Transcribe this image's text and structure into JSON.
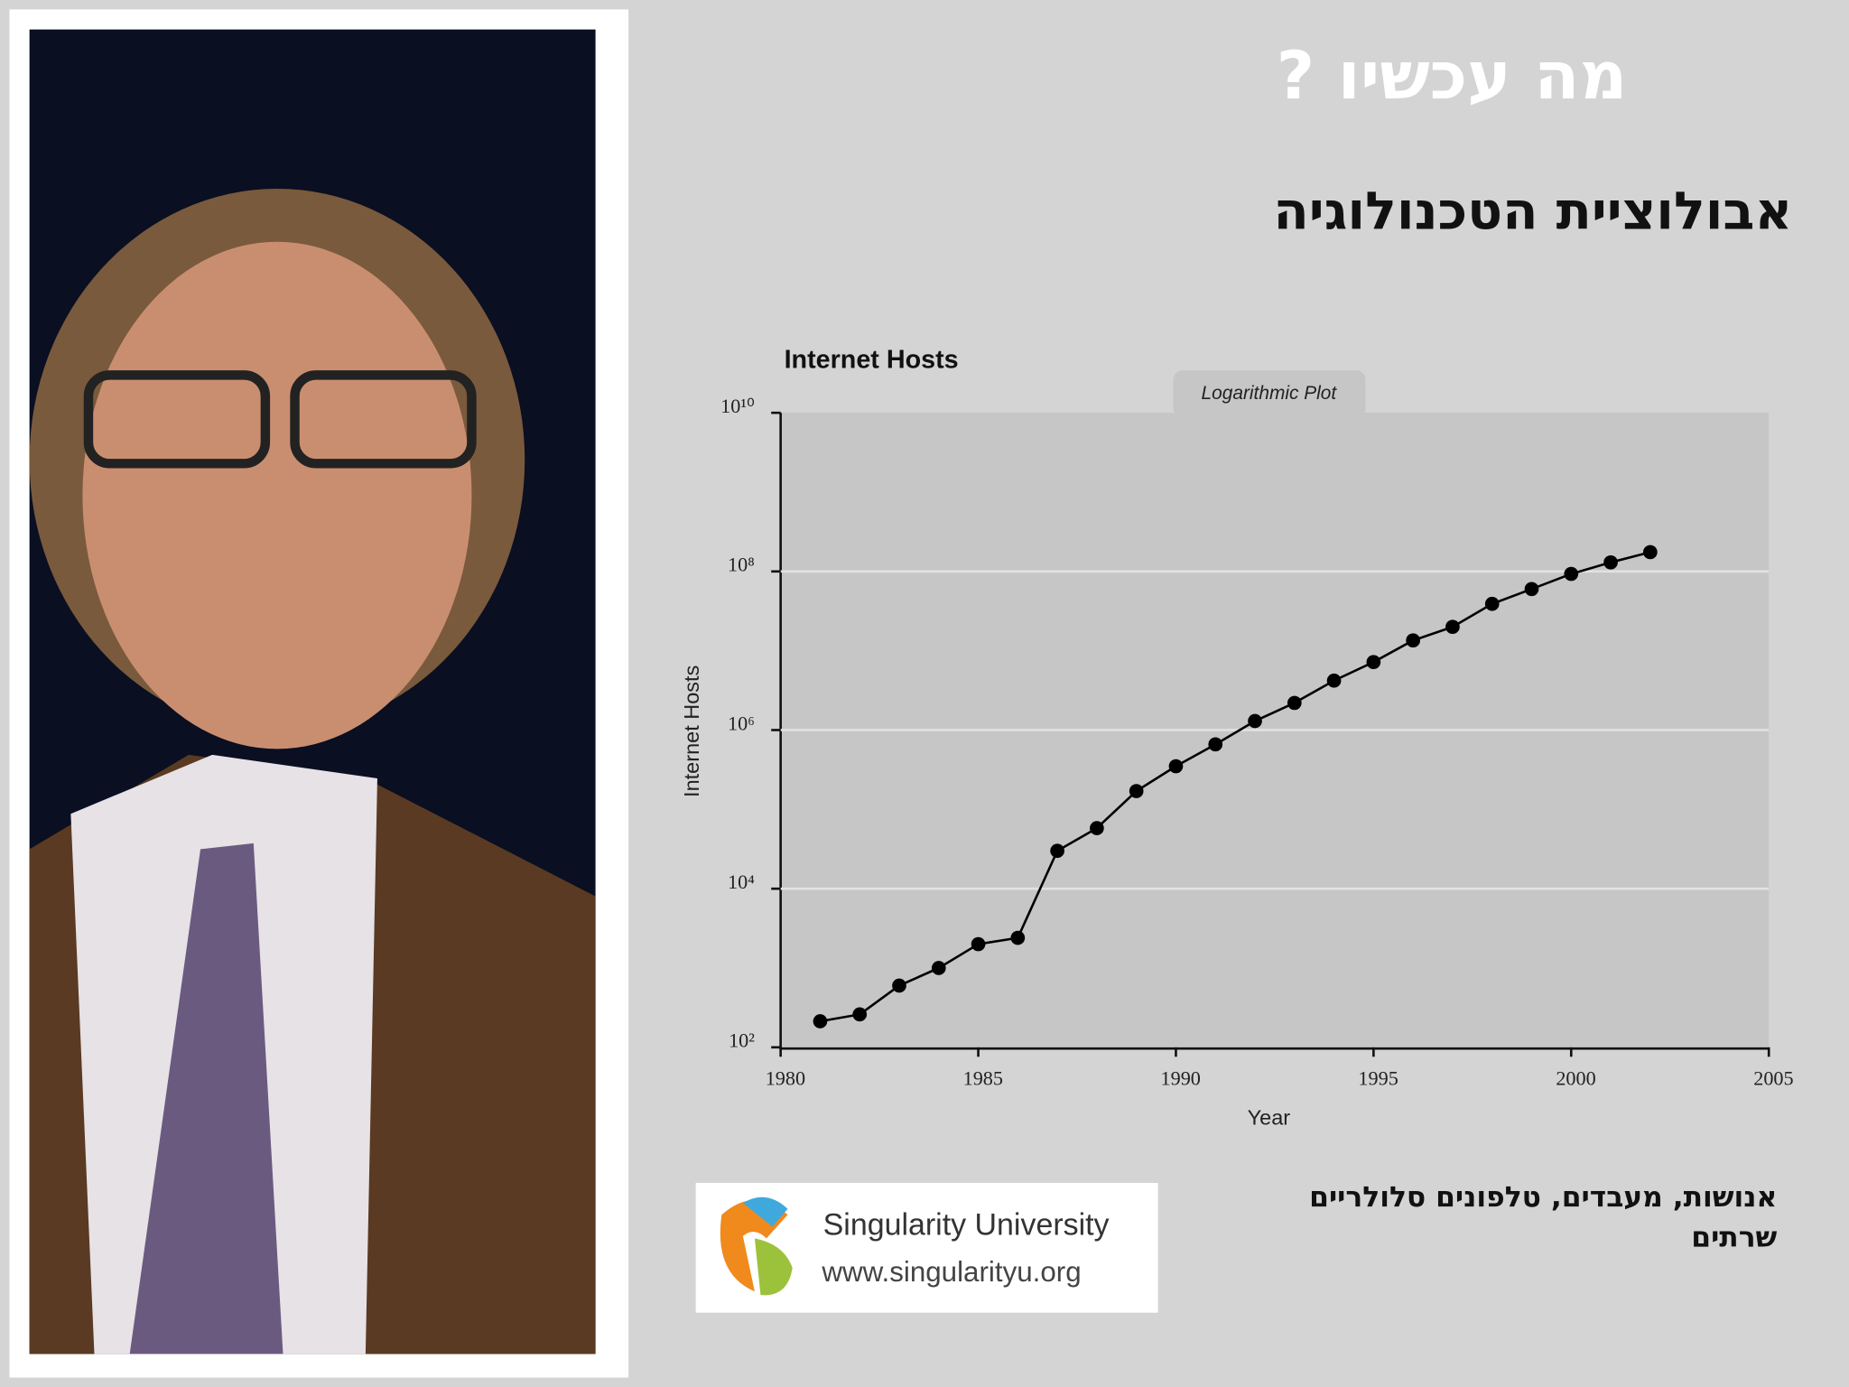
{
  "slide": {
    "heading": "מה עכשיו ?",
    "subheading": "אבולוציית הטכנולוגיה",
    "caption_lines": [
      "אנושות, מעבדים, טלפונים סלולריים",
      "שרתים"
    ],
    "logo": {
      "name": "Singularity University",
      "url": "www.singularityu.org"
    }
  },
  "chart_data": {
    "type": "line",
    "title": "Internet Hosts",
    "annotation": "Logarithmic Plot",
    "x_label": "Year",
    "y_label": "Internet Hosts",
    "x": [
      1981,
      1982,
      1983,
      1984,
      1985,
      1986,
      1987,
      1988,
      1989,
      1990,
      1991,
      1992,
      1993,
      1994,
      1995,
      1996,
      1997,
      1998,
      1999,
      2000,
      2001,
      2002
    ],
    "values": [
      213,
      260,
      600,
      1000,
      2000,
      2400,
      30000,
      58000,
      170000,
      350000,
      660000,
      1300000,
      2200000,
      4200000,
      7200000,
      13500000,
      20000000,
      39000000,
      60000000,
      93000000,
      130000000,
      175000000
    ],
    "color": "#000000",
    "xlim": [
      1980,
      2005
    ],
    "xticks": [
      1980,
      1985,
      1990,
      1995,
      2000,
      2005
    ],
    "ylim": [
      100,
      10000000000
    ],
    "log_y": true,
    "grid": true,
    "yticks": [
      {
        "value": 100,
        "label": "10²"
      },
      {
        "value": 10000,
        "label": "10⁴"
      },
      {
        "value": 1000000,
        "label": "10⁶"
      },
      {
        "value": 100000000,
        "label": "10⁸"
      },
      {
        "value": 10000000000,
        "label": "10¹⁰"
      }
    ]
  }
}
